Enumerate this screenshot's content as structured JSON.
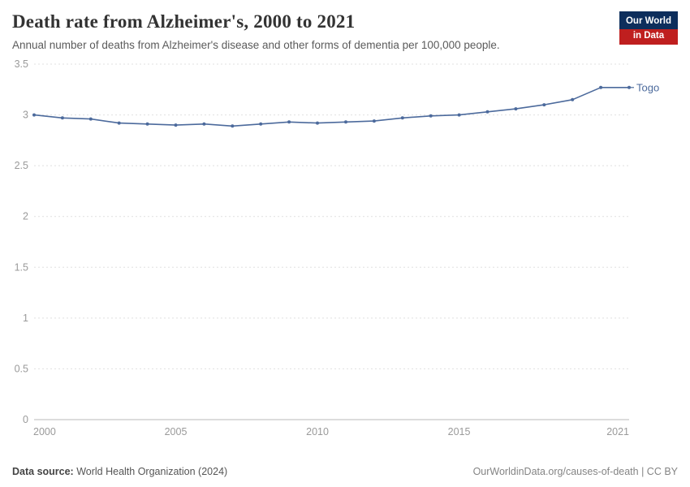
{
  "header": {
    "title": "Death rate from Alzheimer's, 2000 to 2021",
    "subtitle": "Annual number of deaths from Alzheimer's disease and other forms of dementia per 100,000 people.",
    "logo": {
      "line1": "Our World",
      "line2": "in Data"
    }
  },
  "chart_data": {
    "type": "line",
    "title": "Death rate from Alzheimer's, 2000 to 2021",
    "xlabel": "",
    "ylabel": "",
    "x": [
      2000,
      2001,
      2002,
      2003,
      2004,
      2005,
      2006,
      2007,
      2008,
      2009,
      2010,
      2011,
      2012,
      2013,
      2014,
      2015,
      2016,
      2017,
      2018,
      2019,
      2020,
      2021
    ],
    "series": [
      {
        "name": "Togo",
        "color": "#4c6a9c",
        "values": [
          3.0,
          2.97,
          2.96,
          2.92,
          2.91,
          2.9,
          2.91,
          2.89,
          2.91,
          2.93,
          2.92,
          2.93,
          2.94,
          2.97,
          2.99,
          3.0,
          3.03,
          3.06,
          3.1,
          3.15,
          3.27,
          3.27
        ]
      }
    ],
    "ylim": [
      0,
      3.5
    ],
    "yticks": [
      0,
      0.5,
      1,
      1.5,
      2,
      2.5,
      3,
      3.5
    ],
    "xticks": [
      2000,
      2005,
      2010,
      2015,
      2021
    ],
    "grid": true,
    "grid_style": "dashed-horizontal",
    "legend_position": "end-of-line"
  },
  "footer": {
    "source_label": "Data source:",
    "source_text": " World Health Organization (2024)",
    "right_text": "OurWorldinData.org/causes-of-death | CC BY"
  }
}
